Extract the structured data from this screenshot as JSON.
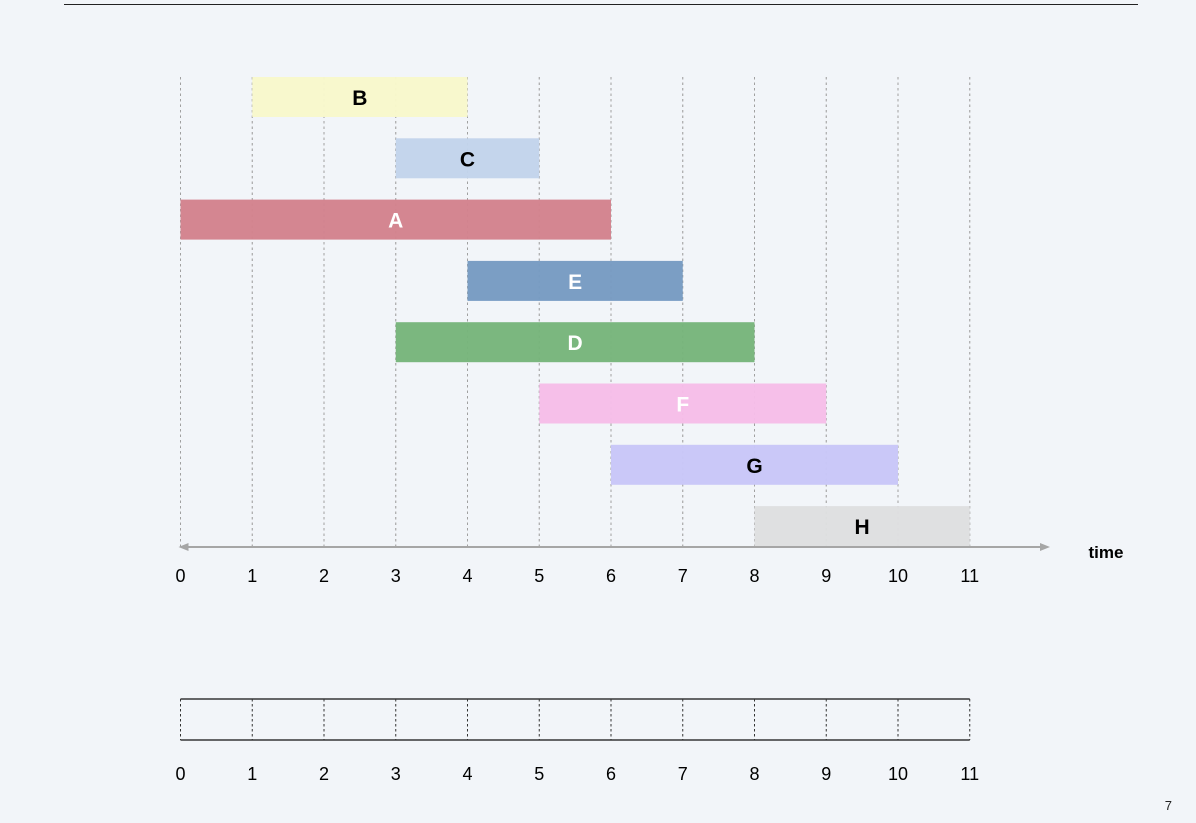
{
  "page_number": "7",
  "axis_label": "time",
  "ticks": [
    "0",
    "1",
    "2",
    "3",
    "4",
    "5",
    "6",
    "7",
    "8",
    "9",
    "10",
    "11"
  ],
  "jobs": [
    {
      "label": "B",
      "start": 1,
      "end": 4,
      "row": 0,
      "color": "#f8f8cb",
      "text_color": "#000000"
    },
    {
      "label": "C",
      "start": 3,
      "end": 5,
      "row": 1,
      "color": "#c2d4eb",
      "text_color": "#000000"
    },
    {
      "label": "A",
      "start": 0,
      "end": 6,
      "row": 2,
      "color": "#d3828d",
      "text_color": "#ffffff"
    },
    {
      "label": "E",
      "start": 4,
      "end": 7,
      "row": 3,
      "color": "#779bc2",
      "text_color": "#ffffff"
    },
    {
      "label": "D",
      "start": 3,
      "end": 8,
      "row": 4,
      "color": "#77b57b",
      "text_color": "#ffffff"
    },
    {
      "label": "F",
      "start": 5,
      "end": 9,
      "row": 5,
      "color": "#f6bde8",
      "text_color": "#ffffff"
    },
    {
      "label": "G",
      "start": 6,
      "end": 10,
      "row": 6,
      "color": "#c8c6f8",
      "text_color": "#000000"
    },
    {
      "label": "H",
      "start": 8,
      "end": 11,
      "row": 7,
      "color": "#dedfe0",
      "text_color": "#000000"
    }
  ],
  "colors": {
    "background": "#f2f5f9",
    "axis": "#a6a6a6",
    "gridline": "#a0a0a0",
    "text": "#000000"
  }
}
